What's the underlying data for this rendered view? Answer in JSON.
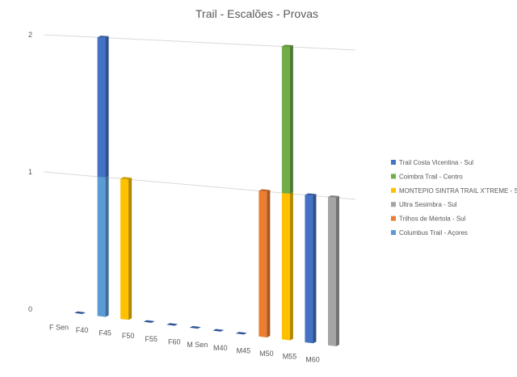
{
  "chart_data": {
    "type": "bar",
    "title": "Trail - Escalões - Provas",
    "xlabel": "",
    "ylabel": "",
    "ylim": [
      0,
      2
    ],
    "yticks": [
      0,
      1,
      2
    ],
    "grid": true,
    "legend_position": "right",
    "categories": [
      "F Sen",
      "F40",
      "F45",
      "F50",
      "F55",
      "F60",
      "M Sen",
      "M40",
      "M45",
      "M50",
      "M55",
      "M60"
    ],
    "series": [
      {
        "name": "Trail Costa Vicentina - Sul",
        "color": "#4472c4",
        "values": [
          0,
          1,
          0,
          0,
          0,
          0,
          0,
          0,
          0,
          0,
          1,
          0
        ]
      },
      {
        "name": "Coimbra Trail - Centro",
        "color": "#70ad47",
        "values": [
          0,
          0,
          0,
          0,
          0,
          0,
          0,
          0,
          0,
          1,
          0,
          0
        ]
      },
      {
        "name": "MONTEPIO SINTRA TRAIL X'TREME - Sul",
        "color": "#ffc000",
        "values": [
          0,
          0,
          1,
          0,
          0,
          0,
          0,
          0,
          0,
          1,
          0,
          0
        ]
      },
      {
        "name": "Ultra Sesimbra - Sul",
        "color": "#a5a5a5",
        "values": [
          0,
          0,
          0,
          0,
          0,
          0,
          0,
          0,
          0,
          0,
          0,
          1
        ]
      },
      {
        "name": "Trilhos de Mértola - Sul",
        "color": "#ed7d31",
        "values": [
          0,
          0,
          0,
          0,
          0,
          0,
          0,
          0,
          1,
          0,
          0,
          0
        ]
      },
      {
        "name": "Columbus Trail - Açores",
        "color": "#5b9bd5",
        "values": [
          0,
          1,
          0,
          0,
          0,
          0,
          0,
          0,
          0,
          0,
          0,
          0
        ]
      }
    ],
    "stack_order": [
      "Columbus Trail - Açores",
      "Trilhos de Mértola - Sul",
      "Ultra Sesimbra - Sul",
      "MONTEPIO SINTRA TRAIL X'TREME - Sul",
      "Coimbra Trail - Centro",
      "Trail Costa Vicentina - Sul"
    ]
  }
}
